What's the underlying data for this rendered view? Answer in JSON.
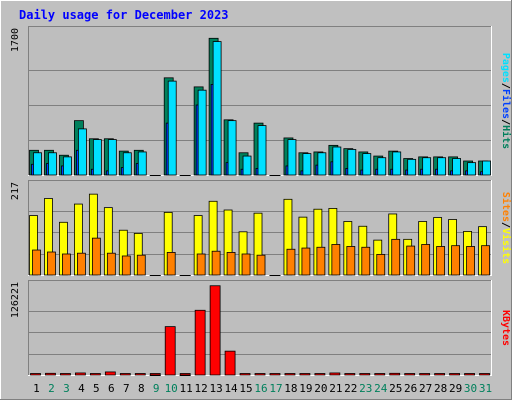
{
  "title": "Daily usage for December 2023",
  "colors": {
    "background": "#c0c0c0",
    "panel": "#bebebe",
    "title": "#0000ff",
    "hits": "#00805c",
    "files": "#0040ff",
    "pages": "#00e0ff",
    "visits": "#ffff00",
    "sites": "#ff8000",
    "kbytes": "#ff0000",
    "weekend": "#00805c",
    "weekday": "#000000"
  },
  "legends": {
    "top": [
      {
        "key": "pages",
        "label": "Pages"
      },
      {
        "key": "sep",
        "label": "/"
      },
      {
        "key": "files",
        "label": "Files"
      },
      {
        "key": "sep",
        "label": "/"
      },
      {
        "key": "hits",
        "label": "Hits"
      }
    ],
    "mid": [
      {
        "key": "sites",
        "label": "Sites"
      },
      {
        "key": "sep",
        "label": "/"
      },
      {
        "key": "visits",
        "label": "Visits"
      }
    ],
    "bot": [
      {
        "key": "kbytes",
        "label": "KBytes"
      }
    ]
  },
  "chart_data": {
    "type": "bar",
    "title": "Daily usage for December 2023",
    "x": [
      1,
      2,
      3,
      4,
      5,
      6,
      7,
      8,
      9,
      10,
      11,
      12,
      13,
      14,
      15,
      16,
      17,
      18,
      19,
      20,
      21,
      22,
      23,
      24,
      25,
      26,
      27,
      28,
      29,
      30,
      31
    ],
    "weekend_days": [
      2,
      3,
      9,
      10,
      16,
      17,
      23,
      24,
      30,
      31
    ],
    "panels": [
      {
        "name": "hits-files-pages",
        "scale_label": "1700",
        "ylim": [
          0,
          1700
        ],
        "series": [
          {
            "name": "Hits",
            "values": [
              300,
              300,
              240,
              660,
              440,
              440,
              290,
              300,
              0,
              1180,
              0,
              1070,
              1660,
              670,
              270,
              630,
              0,
              450,
              270,
              280,
              360,
              320,
              280,
              230,
              290,
              200,
              220,
              220,
              220,
              170,
              170
            ]
          },
          {
            "name": "Files",
            "values": [
              130,
              140,
              110,
              300,
              70,
              50,
              90,
              140,
              0,
              630,
              0,
              850,
              1100,
              150,
              70,
              80,
              0,
              110,
              50,
              120,
              160,
              80,
              60,
              70,
              70,
              60,
              70,
              70,
              50,
              50,
              40
            ]
          },
          {
            "name": "Pages",
            "values": [
              270,
              270,
              220,
              560,
              430,
              430,
              270,
              280,
              0,
              1140,
              0,
              1030,
              1620,
              660,
              230,
              600,
              0,
              430,
              260,
              270,
              340,
              310,
              260,
              210,
              280,
              190,
              210,
              210,
              200,
              150,
              170
            ]
          }
        ]
      },
      {
        "name": "visits-sites",
        "scale_label": "217",
        "ylim": [
          0,
          217
        ],
        "series": [
          {
            "name": "Visits",
            "values": [
              150,
              193,
              133,
              179,
              204,
              170,
              113,
              105,
              0,
              158,
              0,
              150,
              186,
              164,
              109,
              156,
              0,
              191,
              146,
              166,
              168,
              135,
              123,
              88,
              154,
              90,
              135,
              145,
              140,
              110,
              122
            ]
          },
          {
            "name": "Sites",
            "values": [
              63,
              58,
              53,
              55,
              93,
              55,
              48,
              50,
              0,
              57,
              0,
              53,
              60,
              57,
              53,
              50,
              0,
              65,
              68,
              70,
              77,
              72,
              70,
              52,
              90,
              73,
              77,
              72,
              74,
              72,
              74
            ]
          }
        ]
      },
      {
        "name": "kbytes",
        "scale_label": "126221",
        "ylim": [
          0,
          126221
        ],
        "series": [
          {
            "name": "KBytes",
            "values": [
              1500,
              2500,
              2000,
              3000,
              1500,
              4500,
              1500,
              1500,
              0,
              71000,
              0,
              95000,
              131000,
              35000,
              1200,
              1200,
              2000,
              2000,
              1500,
              2000,
              3000,
              2000,
              2000,
              1200,
              2500,
              1200,
              1200,
              1200,
              1200,
              1200,
              1200
            ]
          }
        ]
      }
    ]
  }
}
